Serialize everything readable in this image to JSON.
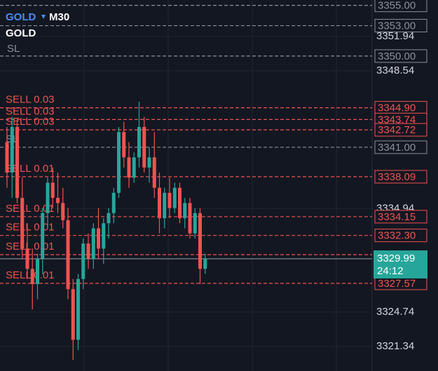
{
  "chart_data": {
    "type": "candlestick",
    "symbol": "GOLD",
    "timeframe": "M30",
    "subtitle": "GOLD",
    "note": "SL",
    "up_color": "#26a69a",
    "down_color": "#ef5350",
    "open": [
      3341.5,
      3338.5,
      3343.0,
      3336.0,
      3331.0,
      3329.0,
      3327.5,
      3330.0,
      3334.5,
      3337.5,
      3336.0,
      3335.5,
      3333.8,
      3327.0,
      3322.0,
      3328.0,
      3331.5,
      3330.0,
      3333.0,
      3331.0,
      3333.5,
      3334.5,
      3336.5,
      3342.5,
      3340.0,
      3338.0,
      3340.0,
      3343.0,
      3339.0,
      3340.0,
      3337.0,
      3334.0,
      3336.5,
      3335.0,
      3337.0,
      3334.0,
      3335.5,
      3332.5,
      3334.5,
      3329.0
    ],
    "high": [
      3343.0,
      3344.0,
      3343.8,
      3338.0,
      3333.5,
      3331.0,
      3330.5,
      3335.0,
      3338.0,
      3339.0,
      3338.5,
      3337.0,
      3335.0,
      3328.0,
      3328.5,
      3332.0,
      3332.5,
      3333.5,
      3335.0,
      3334.0,
      3335.0,
      3337.0,
      3343.0,
      3343.5,
      3341.5,
      3340.5,
      3345.5,
      3344.0,
      3341.0,
      3342.5,
      3338.5,
      3337.0,
      3338.0,
      3337.5,
      3337.5,
      3336.0,
      3336.0,
      3335.0,
      3335.0,
      3330.5
    ],
    "low": [
      3337.0,
      3336.0,
      3335.5,
      3330.0,
      3328.0,
      3325.0,
      3326.0,
      3328.5,
      3333.0,
      3335.0,
      3334.5,
      3333.0,
      3326.0,
      3320.0,
      3321.0,
      3327.0,
      3329.0,
      3329.0,
      3330.0,
      3329.5,
      3332.0,
      3333.5,
      3336.0,
      3339.0,
      3337.0,
      3337.5,
      3339.0,
      3338.5,
      3337.5,
      3336.0,
      3332.5,
      3333.0,
      3334.0,
      3334.5,
      3333.5,
      3333.0,
      3332.0,
      3332.0,
      3327.5,
      3328.5
    ],
    "close": [
      3338.5,
      3343.0,
      3336.0,
      3331.0,
      3329.0,
      3327.5,
      3330.0,
      3334.5,
      3337.5,
      3336.0,
      3335.5,
      3333.8,
      3327.0,
      3322.0,
      3328.0,
      3331.5,
      3330.0,
      3333.0,
      3331.0,
      3333.5,
      3334.5,
      3336.5,
      3342.5,
      3340.0,
      3338.0,
      3340.0,
      3343.0,
      3339.0,
      3340.0,
      3337.0,
      3334.0,
      3336.5,
      3335.0,
      3337.0,
      3334.0,
      3335.5,
      3332.5,
      3334.5,
      3329.0,
      3329.99
    ],
    "ylim": [
      3318.92,
      3355.53
    ],
    "yticks": [
      3351.94,
      3348.54,
      3334.94,
      3324.74,
      3321.34
    ],
    "price_lines": [
      {
        "value": 3355,
        "label": "3355.00",
        "color": "#8a8f98"
      },
      {
        "value": 3353,
        "label": "3353.00",
        "color": "#8a8f98"
      },
      {
        "value": 3350,
        "label": "3350.00",
        "color": "#8a8f98"
      },
      {
        "value": 3344.9,
        "label": "3344.90",
        "color": "#ef5350",
        "order": "SELL 0.03"
      },
      {
        "value": 3343.74,
        "label": "3343.74",
        "color": "#ef5350",
        "order": "SELL 0.03"
      },
      {
        "value": 3342.72,
        "label": "3342.72",
        "color": "#ef5350",
        "order": "SELL 0.03"
      },
      {
        "value": 3341,
        "label": "3341.00",
        "color": "#8a8f98",
        "order": "SL"
      },
      {
        "value": 3338.09,
        "label": "3338.09",
        "color": "#ef5350",
        "order": "SELL 0.01"
      },
      {
        "value": 3334.15,
        "label": "3334.15",
        "color": "#ef5350",
        "order": "SELL 0.01"
      },
      {
        "value": 3332.3,
        "label": "3332.30",
        "color": "#ef5350",
        "order": "SELL 0.01"
      },
      {
        "value": 3330.4,
        "color": "#ef5350",
        "order": "SELL 0.01"
      },
      {
        "value": 3327.57,
        "label": "3327.57",
        "color": "#ef5350",
        "order": "SELL 0.01"
      }
    ],
    "current_price": {
      "value": 3329.99,
      "countdown": "24:12",
      "color": "#26a69a"
    }
  }
}
